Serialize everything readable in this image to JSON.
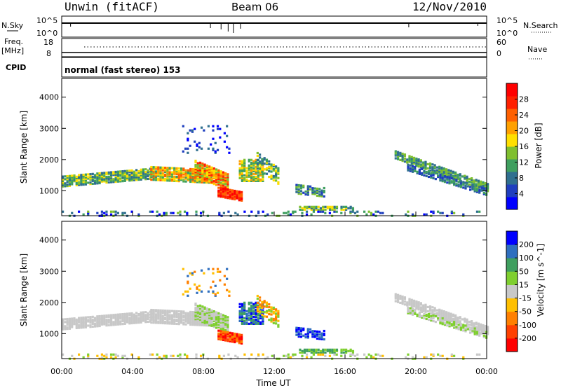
{
  "header": {
    "station": "Unwin (fitACF)",
    "beam": "Beam 06",
    "date": "12/Nov/2010"
  },
  "summary": {
    "nsky_label": "N.Sky",
    "nsky_ticks": [
      "10^5",
      "10^0"
    ],
    "nsearch_label": "N.Search",
    "nsearch_ticks": [
      "10^5",
      "10^0"
    ],
    "freq_label": "Freq.",
    "freq_unit": "[MHz]",
    "freq_ticks": [
      "18",
      "8"
    ],
    "nave_label": "Nave",
    "nave_ticks": [
      "60",
      "0"
    ],
    "cpid_label": "CPID",
    "cpid_text": "normal (fast stereo) 153"
  },
  "colors": {
    "power": [
      "#0000ff",
      "#1f3fbf",
      "#2f6f8f",
      "#3f9f5f",
      "#7fbf2f",
      "#ffdf00",
      "#ffa000",
      "#ff6000",
      "#ff2000",
      "#ff0000"
    ],
    "velocity": [
      "#ff0000",
      "#ff4000",
      "#ff8000",
      "#ffbf00",
      "#c8c8c8",
      "#7fcf2f",
      "#3f9f5f",
      "#2f6fbf",
      "#0000ff"
    ]
  },
  "chart_data": [
    {
      "type": "heatmap",
      "name": "power",
      "ylabel": "Slant Range [km]",
      "yticks": [
        "4000",
        "3000",
        "2000",
        "1000"
      ],
      "ylim": [
        200,
        4600
      ],
      "xlim": [
        0,
        24
      ],
      "colorbar_label": "Power [dB]",
      "colorbar_ticks": [
        "28",
        "24",
        "20",
        "16",
        "12",
        "8",
        "4"
      ],
      "clim": [
        0,
        32
      ]
    },
    {
      "type": "heatmap",
      "name": "velocity",
      "ylabel": "Slant Range [km]",
      "yticks": [
        "4000",
        "3000",
        "2000",
        "1000"
      ],
      "ylim": [
        200,
        4600
      ],
      "xlim": [
        0,
        24
      ],
      "colorbar_label": "Velocity [m s^-1]",
      "colorbar_ticks": [
        "200",
        "100",
        "50",
        "15",
        "-15",
        "-50",
        "-100",
        "-200"
      ]
    }
  ],
  "xaxis": {
    "ticks": [
      "00:00",
      "04:00",
      "08:00",
      "12:00",
      "16:00",
      "20:00",
      "00:00"
    ],
    "label": "Time UT"
  }
}
